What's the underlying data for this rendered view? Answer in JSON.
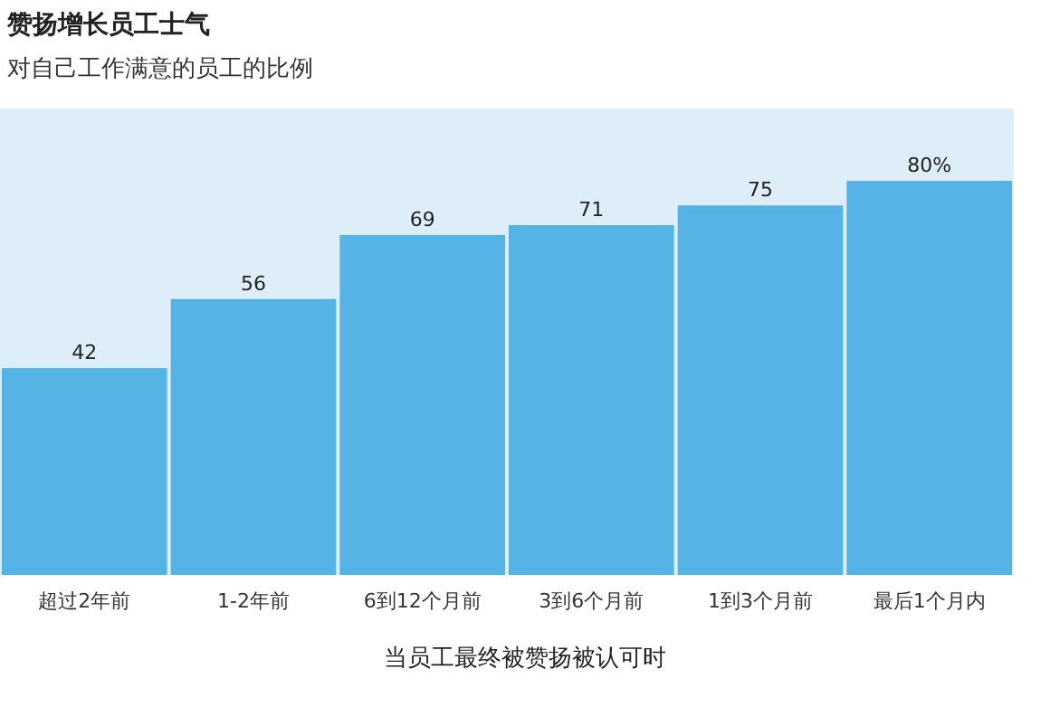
{
  "chart_data": {
    "type": "bar",
    "title": "赞扬增长员工士气",
    "subtitle": "对自己工作满意的员工的比例",
    "xlabel": "当员工最终被赞扬被认可时",
    "categories": [
      "超过2年前",
      "1-2年前",
      "6到12个月前",
      "3到6个月前",
      "1到3个月前",
      "最后1个月内"
    ],
    "values": [
      42,
      56,
      69,
      71,
      75,
      80
    ],
    "value_labels": [
      "42",
      "56",
      "69",
      "71",
      "75",
      "80%"
    ],
    "color": "#55b3e6"
  }
}
